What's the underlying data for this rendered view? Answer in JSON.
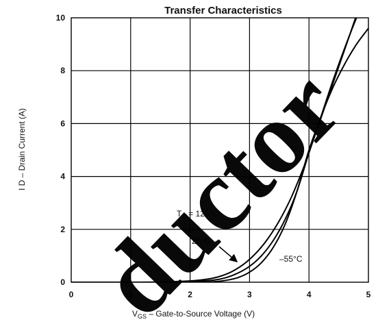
{
  "chart_data": {
    "type": "line",
    "title": "Transfer Characteristics",
    "xlabel": {
      "main": "V",
      "sub": "GS",
      "rest": " – Gate-to-Source Voltage (V)"
    },
    "ylabel": "I D – Drain Current (A)",
    "xlim": [
      0,
      5
    ],
    "ylim": [
      0,
      10
    ],
    "xticks": [
      "0",
      "1",
      "2",
      "3",
      "4",
      "5"
    ],
    "yticks": [
      "0",
      "2",
      "4",
      "6",
      "8",
      "10"
    ],
    "grid": true,
    "series": [
      {
        "name": "T_C = 125°C",
        "x": [
          0,
          1.0,
          1.5,
          2.0,
          2.3,
          2.5,
          2.7,
          2.9,
          3.1,
          3.3,
          3.5,
          3.7,
          3.9,
          4.0,
          4.2,
          4.4,
          4.6,
          4.8,
          4.95
        ],
        "y": [
          0,
          0,
          0.01,
          0.05,
          0.12,
          0.22,
          0.4,
          0.68,
          1.08,
          1.62,
          2.32,
          3.2,
          4.28,
          4.9,
          6.2,
          7.5,
          8.8,
          10.1,
          11.1
        ]
      },
      {
        "name": "25°C",
        "x": [
          0,
          1.5,
          2.0,
          2.4,
          2.6,
          2.8,
          3.0,
          3.2,
          3.4,
          3.6,
          3.8,
          4.0,
          4.2,
          4.4,
          4.6,
          4.8,
          5.0
        ],
        "y": [
          0,
          0,
          0.02,
          0.08,
          0.17,
          0.34,
          0.6,
          1.0,
          1.58,
          2.38,
          3.45,
          4.9,
          6.25,
          7.6,
          8.85,
          10.0,
          11.0
        ]
      },
      {
        "name": "–55°C",
        "x": [
          0,
          2.0,
          2.4,
          2.6,
          2.8,
          3.0,
          3.2,
          3.4,
          3.6,
          3.8,
          4.0,
          4.2,
          4.4,
          4.6,
          4.8,
          5.0
        ],
        "y": [
          0,
          0,
          0.02,
          0.07,
          0.17,
          0.38,
          0.74,
          1.32,
          2.2,
          3.45,
          5.0,
          6.25,
          7.35,
          8.25,
          9.0,
          9.6
        ]
      }
    ],
    "annotations": [
      {
        "text_main": "T",
        "text_sub": "C",
        "text_rest": " = 125°C"
      },
      {
        "text": "25°C"
      },
      {
        "text": "–55°C"
      }
    ]
  },
  "watermark": "ductor"
}
